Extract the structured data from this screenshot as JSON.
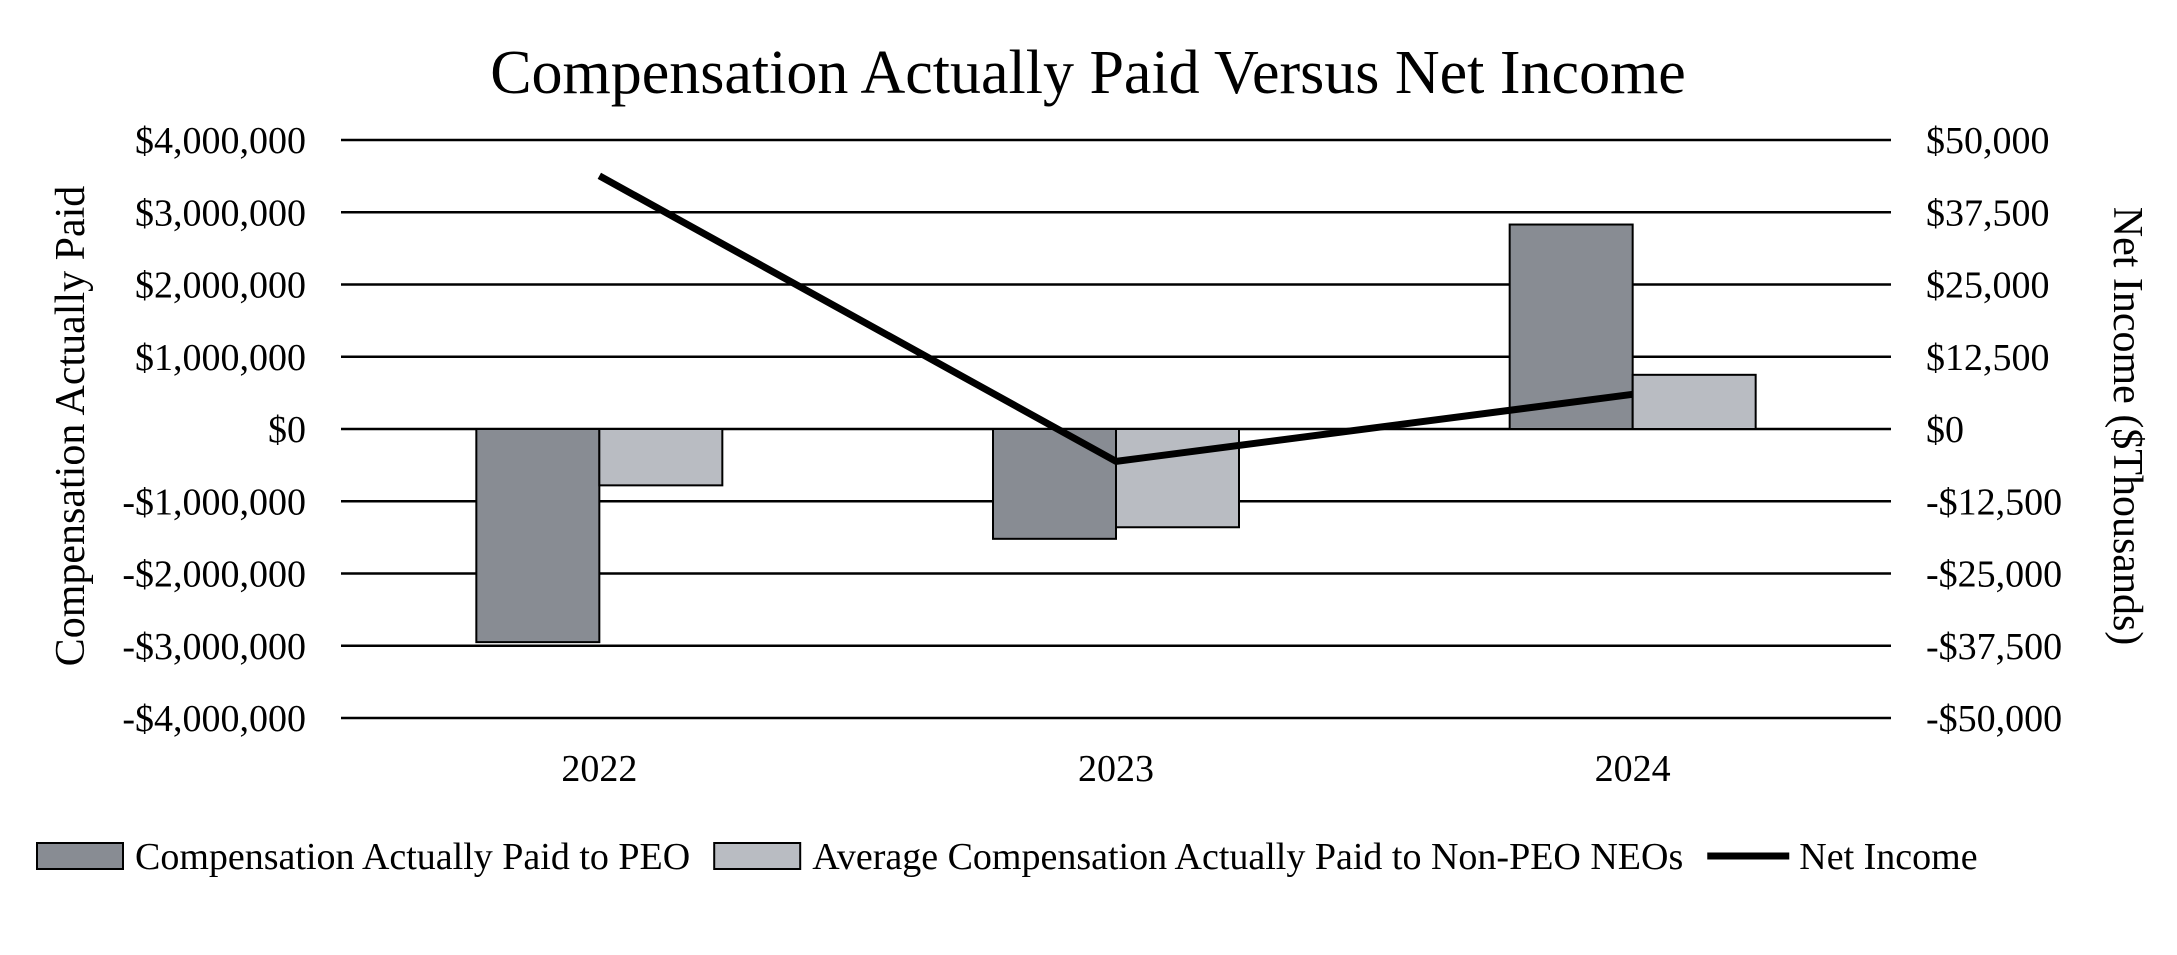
{
  "chart_data": {
    "type": "bar",
    "title": "Compensation Actually Paid Versus Net Income",
    "categories": [
      "2022",
      "2023",
      "2024"
    ],
    "ylabel": "Compensation Actually Paid",
    "y2label": "Net Income ($Thousands)",
    "ylim": [
      -4000000,
      4000000
    ],
    "y2lim": [
      -50000,
      50000
    ],
    "y_ticks": [
      "$4,000,000",
      "$3,000,000",
      "$2,000,000",
      "$1,000,000",
      "$0",
      "-$1,000,000",
      "-$2,000,000",
      "-$3,000,000",
      "-$4,000,000"
    ],
    "y2_ticks": [
      "$50,000",
      "$37,500",
      "$25,000",
      "$12,500",
      "$0",
      "-$12,500",
      "-$25,000",
      "-$37,500",
      "-$50,000"
    ],
    "grid": true,
    "legend_position": "bottom",
    "series": [
      {
        "name": "Compensation Actually Paid to PEO",
        "type": "bar",
        "axis": "left",
        "color": "#888c93",
        "values": [
          -2950000,
          -1520000,
          2830000
        ]
      },
      {
        "name": "Average Compensation Actually Paid to Non-PEO NEOs",
        "type": "bar",
        "axis": "left",
        "color": "#b9bcc2",
        "values": [
          -780000,
          -1360000,
          750000
        ]
      },
      {
        "name": "Net Income",
        "type": "line",
        "axis": "right",
        "color": "#000000",
        "values": [
          43800,
          -5600,
          6000
        ]
      }
    ]
  }
}
